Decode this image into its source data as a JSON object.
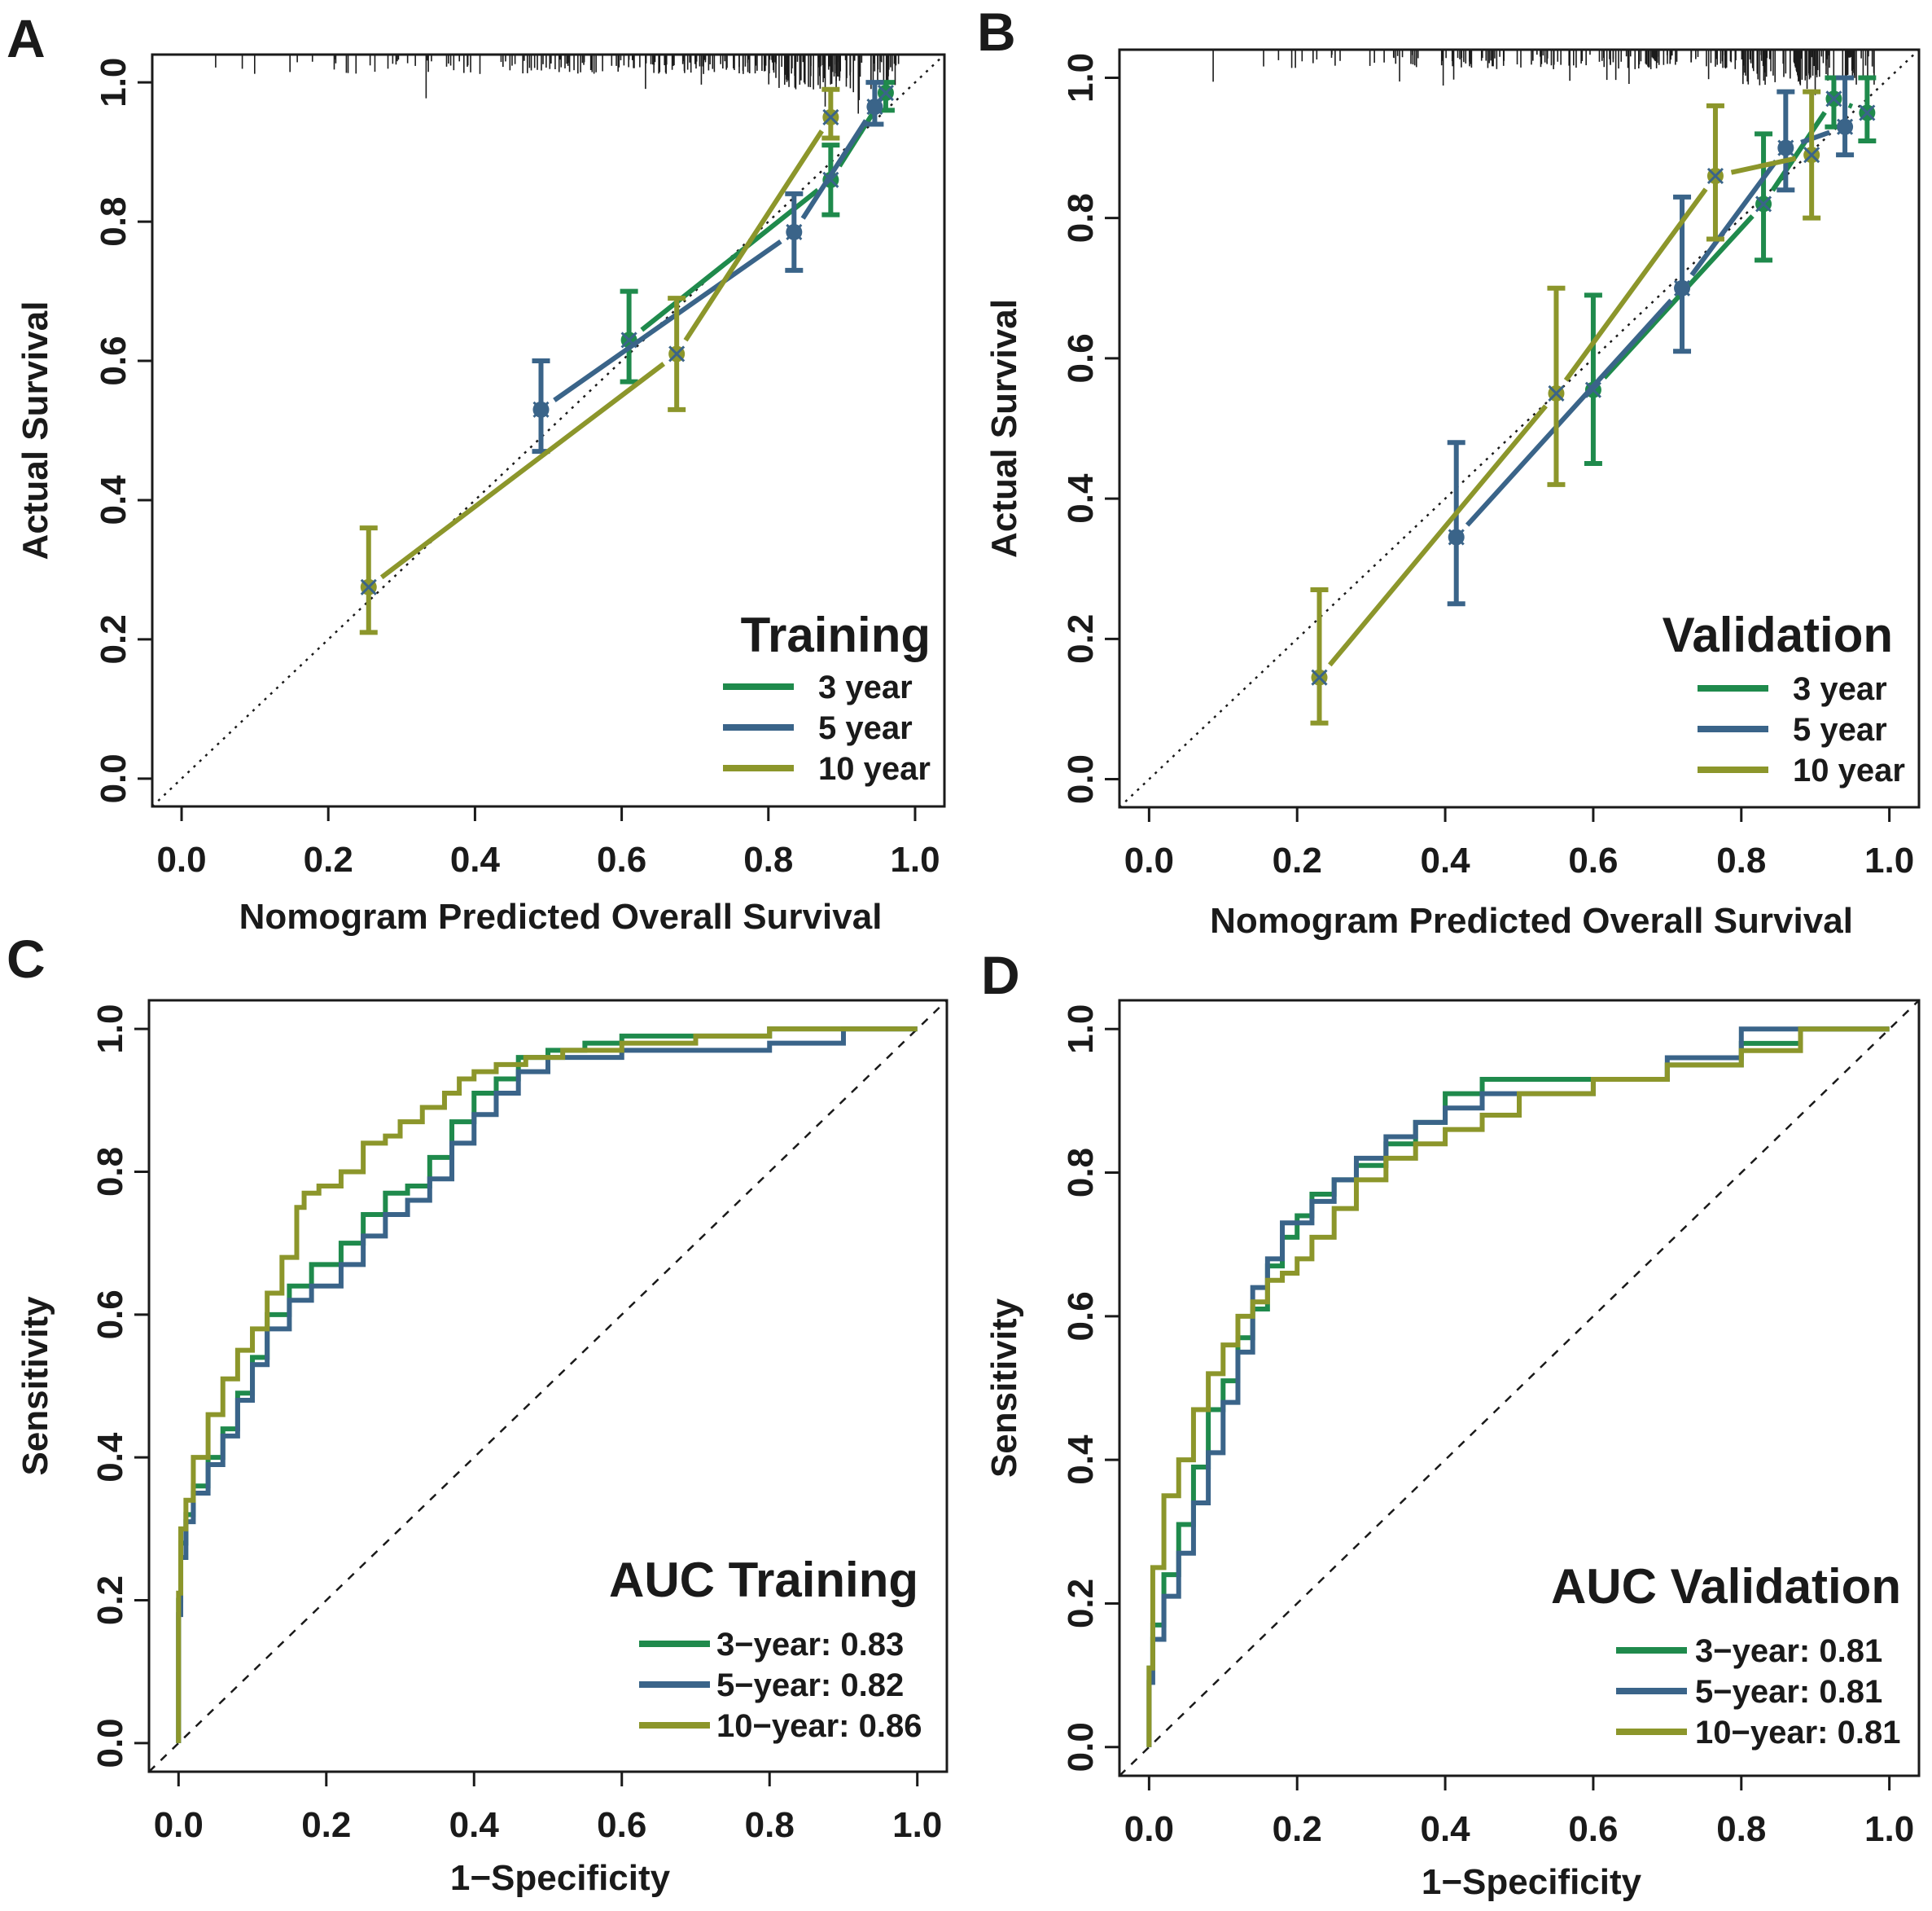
{
  "figure": {
    "colors": {
      "green": "#1f8a4c",
      "blue": "#3a6489",
      "olive": "#8c962b",
      "axis": "#1a1a1a"
    }
  },
  "chart_data": [
    {
      "id": "A",
      "type": "line",
      "subtype": "calibration",
      "panel_letter": "A",
      "legend_title": "Training",
      "xlabel": "Nomogram Predicted Overall Survival",
      "ylabel": "Actual Survival",
      "xlim": [
        -0.04,
        1.04
      ],
      "ylim": [
        -0.04,
        1.04
      ],
      "x_ticks": [
        "0.0",
        "0.2",
        "0.4",
        "0.6",
        "0.8",
        "1.0"
      ],
      "y_ticks": [
        "0.0",
        "0.2",
        "0.4",
        "0.6",
        "0.8",
        "1.0"
      ],
      "reference_line": "diagonal-dotted",
      "rug": "top",
      "legend_position": "bottom-right",
      "series": [
        {
          "name": "3 year",
          "color": "#1f8a4c",
          "x": [
            0.61,
            0.885,
            0.96
          ],
          "y": [
            0.63,
            0.86,
            0.985
          ],
          "lower": [
            0.57,
            0.81,
            0.96
          ],
          "upper": [
            0.7,
            0.91,
            1.0
          ]
        },
        {
          "name": "5 year",
          "color": "#3a6489",
          "x": [
            0.49,
            0.835,
            0.945
          ],
          "y": [
            0.53,
            0.785,
            0.965
          ],
          "lower": [
            0.47,
            0.73,
            0.94
          ],
          "upper": [
            0.6,
            0.84,
            1.0
          ]
        },
        {
          "name": "10 year",
          "color": "#8c962b",
          "x": [
            0.255,
            0.675,
            0.885
          ],
          "y": [
            0.275,
            0.61,
            0.95
          ],
          "lower": [
            0.21,
            0.53,
            0.92
          ],
          "upper": [
            0.36,
            0.69,
            0.99
          ]
        }
      ]
    },
    {
      "id": "B",
      "type": "line",
      "subtype": "calibration",
      "panel_letter": "B",
      "legend_title": "Validation",
      "xlabel": "Nomogram Predicted Overall Survival",
      "ylabel": "Actual Survival",
      "xlim": [
        -0.04,
        1.04
      ],
      "ylim": [
        -0.04,
        1.04
      ],
      "x_ticks": [
        "0.0",
        "0.2",
        "0.4",
        "0.6",
        "0.8",
        "1.0"
      ],
      "y_ticks": [
        "0.0",
        "0.2",
        "0.4",
        "0.6",
        "0.8",
        "1.0"
      ],
      "reference_line": "diagonal-dotted",
      "rug": "top",
      "legend_position": "bottom-right",
      "series": [
        {
          "name": "3 year",
          "color": "#1f8a4c",
          "x": [
            0.6,
            0.83,
            0.925,
            0.97
          ],
          "y": [
            0.555,
            0.82,
            0.97,
            0.95
          ],
          "lower": [
            0.45,
            0.74,
            0.93,
            0.91
          ],
          "upper": [
            0.69,
            0.92,
            1.0,
            1.0
          ]
        },
        {
          "name": "5 year",
          "color": "#3a6489",
          "x": [
            0.415,
            0.72,
            0.86,
            0.94
          ],
          "y": [
            0.345,
            0.7,
            0.9,
            0.93
          ],
          "lower": [
            0.25,
            0.61,
            0.84,
            0.89
          ],
          "upper": [
            0.48,
            0.83,
            0.98,
            1.0
          ]
        },
        {
          "name": "10 year",
          "color": "#8c962b",
          "x": [
            0.23,
            0.55,
            0.765,
            0.895
          ],
          "y": [
            0.145,
            0.55,
            0.86,
            0.89
          ],
          "lower": [
            0.08,
            0.42,
            0.77,
            0.8
          ],
          "upper": [
            0.27,
            0.7,
            0.96,
            0.98
          ]
        }
      ]
    },
    {
      "id": "C",
      "type": "line",
      "subtype": "roc",
      "panel_letter": "C",
      "legend_title": "AUC Training",
      "xlabel": "1−Specificity",
      "ylabel": "Sensitivity",
      "xlim": [
        -0.04,
        1.04
      ],
      "ylim": [
        -0.04,
        1.04
      ],
      "x_ticks": [
        "0.0",
        "0.2",
        "0.4",
        "0.6",
        "0.8",
        "1.0"
      ],
      "y_ticks": [
        "0.0",
        "0.2",
        "0.4",
        "0.6",
        "0.8",
        "1.0"
      ],
      "reference_line": "diagonal-dashed",
      "legend_position": "bottom-right",
      "series": [
        {
          "name": "3−year: 0.83",
          "color": "#1f8a4c",
          "x": [
            0,
            0.003,
            0.01,
            0.02,
            0.04,
            0.06,
            0.08,
            0.1,
            0.12,
            0.15,
            0.18,
            0.22,
            0.25,
            0.28,
            0.31,
            0.34,
            0.37,
            0.4,
            0.43,
            0.46,
            0.5,
            0.55,
            0.6,
            0.7,
            0.8,
            0.88,
            0.95,
            1.0
          ],
          "y": [
            0,
            0.2,
            0.28,
            0.32,
            0.36,
            0.4,
            0.44,
            0.49,
            0.54,
            0.6,
            0.64,
            0.67,
            0.7,
            0.74,
            0.77,
            0.78,
            0.82,
            0.87,
            0.91,
            0.93,
            0.96,
            0.97,
            0.98,
            0.99,
            0.99,
            1.0,
            1.0,
            1.0
          ]
        },
        {
          "name": "5−year: 0.82",
          "color": "#3a6489",
          "x": [
            0,
            0.003,
            0.01,
            0.02,
            0.04,
            0.06,
            0.08,
            0.1,
            0.12,
            0.15,
            0.18,
            0.22,
            0.25,
            0.28,
            0.31,
            0.34,
            0.37,
            0.4,
            0.43,
            0.46,
            0.5,
            0.55,
            0.6,
            0.7,
            0.8,
            0.9,
            0.95,
            1.0
          ],
          "y": [
            0,
            0.18,
            0.26,
            0.31,
            0.35,
            0.39,
            0.43,
            0.48,
            0.53,
            0.58,
            0.62,
            0.64,
            0.67,
            0.71,
            0.74,
            0.76,
            0.79,
            0.84,
            0.88,
            0.91,
            0.94,
            0.96,
            0.96,
            0.97,
            0.97,
            0.98,
            1.0,
            1.0
          ]
        },
        {
          "name": "10−year: 0.86",
          "color": "#8c962b",
          "x": [
            0,
            0.003,
            0.01,
            0.02,
            0.04,
            0.06,
            0.08,
            0.1,
            0.12,
            0.14,
            0.16,
            0.17,
            0.19,
            0.22,
            0.25,
            0.28,
            0.3,
            0.33,
            0.36,
            0.38,
            0.4,
            0.43,
            0.47,
            0.52,
            0.6,
            0.7,
            0.8,
            0.9,
            1.0
          ],
          "y": [
            0,
            0.21,
            0.3,
            0.34,
            0.4,
            0.46,
            0.51,
            0.55,
            0.58,
            0.63,
            0.68,
            0.75,
            0.77,
            0.78,
            0.8,
            0.84,
            0.85,
            0.87,
            0.89,
            0.91,
            0.93,
            0.94,
            0.95,
            0.96,
            0.97,
            0.98,
            0.99,
            1.0,
            1.0
          ]
        }
      ]
    },
    {
      "id": "D",
      "type": "line",
      "subtype": "roc",
      "panel_letter": "D",
      "legend_title": "AUC Validation",
      "xlabel": "1−Specificity",
      "ylabel": "Sensitivity",
      "xlim": [
        -0.04,
        1.04
      ],
      "ylim": [
        -0.04,
        1.04
      ],
      "x_ticks": [
        "0.0",
        "0.2",
        "0.4",
        "0.6",
        "0.8",
        "1.0"
      ],
      "y_ticks": [
        "0.0",
        "0.2",
        "0.4",
        "0.6",
        "0.8",
        "1.0"
      ],
      "reference_line": "diagonal-dashed",
      "legend_position": "bottom-right",
      "series": [
        {
          "name": "3−year: 0.81",
          "color": "#1f8a4c",
          "x": [
            0,
            0.005,
            0.02,
            0.04,
            0.06,
            0.08,
            0.1,
            0.12,
            0.14,
            0.16,
            0.18,
            0.2,
            0.22,
            0.25,
            0.28,
            0.32,
            0.36,
            0.4,
            0.45,
            0.5,
            0.6,
            0.7,
            0.8,
            0.88,
            1.0
          ],
          "y": [
            0,
            0.11,
            0.17,
            0.24,
            0.31,
            0.39,
            0.47,
            0.51,
            0.57,
            0.61,
            0.67,
            0.71,
            0.74,
            0.77,
            0.79,
            0.81,
            0.84,
            0.87,
            0.91,
            0.93,
            0.93,
            0.93,
            0.95,
            0.98,
            1.0
          ]
        },
        {
          "name": "5−year: 0.81",
          "color": "#3a6489",
          "x": [
            0,
            0.005,
            0.02,
            0.04,
            0.06,
            0.08,
            0.1,
            0.12,
            0.14,
            0.16,
            0.18,
            0.2,
            0.22,
            0.25,
            0.28,
            0.32,
            0.36,
            0.4,
            0.45,
            0.5,
            0.6,
            0.7,
            0.8,
            0.88,
            1.0
          ],
          "y": [
            0,
            0.09,
            0.15,
            0.21,
            0.27,
            0.34,
            0.41,
            0.48,
            0.55,
            0.64,
            0.68,
            0.73,
            0.73,
            0.76,
            0.79,
            0.82,
            0.85,
            0.87,
            0.89,
            0.91,
            0.91,
            0.93,
            0.96,
            1.0,
            1.0
          ]
        },
        {
          "name": "10−year: 0.81",
          "color": "#8c962b",
          "x": [
            0,
            0.005,
            0.02,
            0.04,
            0.06,
            0.08,
            0.1,
            0.12,
            0.14,
            0.16,
            0.18,
            0.2,
            0.22,
            0.25,
            0.28,
            0.32,
            0.36,
            0.4,
            0.45,
            0.5,
            0.6,
            0.7,
            0.8,
            0.88,
            1.0
          ],
          "y": [
            0,
            0.11,
            0.25,
            0.35,
            0.4,
            0.47,
            0.52,
            0.56,
            0.6,
            0.62,
            0.65,
            0.66,
            0.68,
            0.71,
            0.75,
            0.79,
            0.82,
            0.84,
            0.86,
            0.88,
            0.91,
            0.93,
            0.95,
            0.97,
            1.0
          ]
        }
      ]
    }
  ]
}
